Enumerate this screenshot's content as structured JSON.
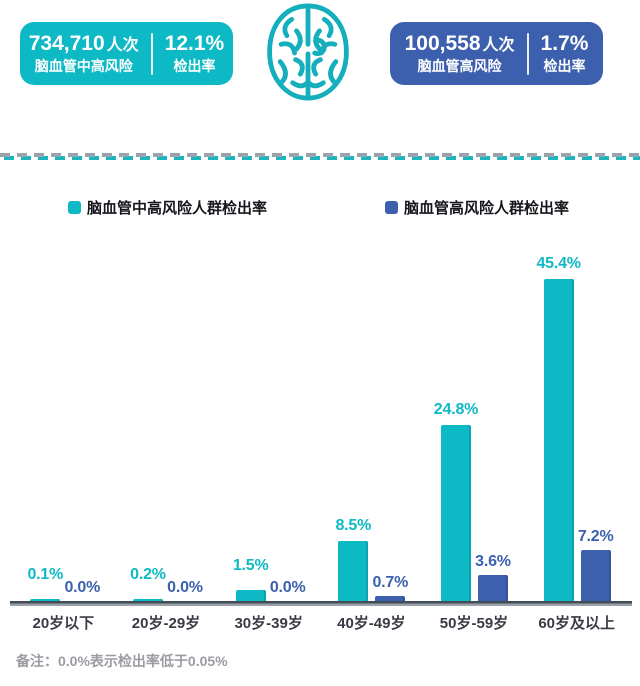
{
  "header": {
    "left_card": {
      "count": "734,710",
      "count_suffix": "人次",
      "label": "脑血管中高风险",
      "rate": "12.1%",
      "rate_label": "检出率",
      "color": "#0cb9c4"
    },
    "right_card": {
      "count": "100,558",
      "count_suffix": "人次",
      "label": "脑血管高风险",
      "rate": "1.7%",
      "rate_label": "检出率",
      "color": "#3d60ae"
    },
    "brain_icon": "brain-icon",
    "brain_icon_color": "#14aebc"
  },
  "legend": [
    {
      "label": "脑血管中高风险人群检出率",
      "color": "#0cb9c4"
    },
    {
      "label": "脑血管高风险人群检出率",
      "color": "#3d60ae"
    }
  ],
  "chart_data": {
    "type": "bar",
    "categories": [
      "20岁以下",
      "20岁-29岁",
      "30岁-39岁",
      "40岁-49岁",
      "50岁-59岁",
      "60岁及以上"
    ],
    "series": [
      {
        "name": "脑血管中高风险人群检出率",
        "color": "#0cb9c4",
        "values": [
          0.1,
          0.2,
          1.5,
          8.5,
          24.8,
          45.4
        ],
        "labels": [
          "0.1%",
          "0.2%",
          "1.5%",
          "8.5%",
          "24.8%",
          "45.4%"
        ]
      },
      {
        "name": "脑血管高风险人群检出率",
        "color": "#3d60ae",
        "values": [
          0.0,
          0.0,
          0.0,
          0.7,
          3.6,
          7.2
        ],
        "labels": [
          "0.0%",
          "0.0%",
          "0.0%",
          "0.7%",
          "3.6%",
          "7.2%"
        ]
      }
    ],
    "ylim": [
      0,
      50
    ],
    "grid": false,
    "legend_position": "top",
    "title": "",
    "xlabel": "",
    "ylabel": ""
  },
  "footnote": "备注：0.0%表示检出率低于0.05%"
}
